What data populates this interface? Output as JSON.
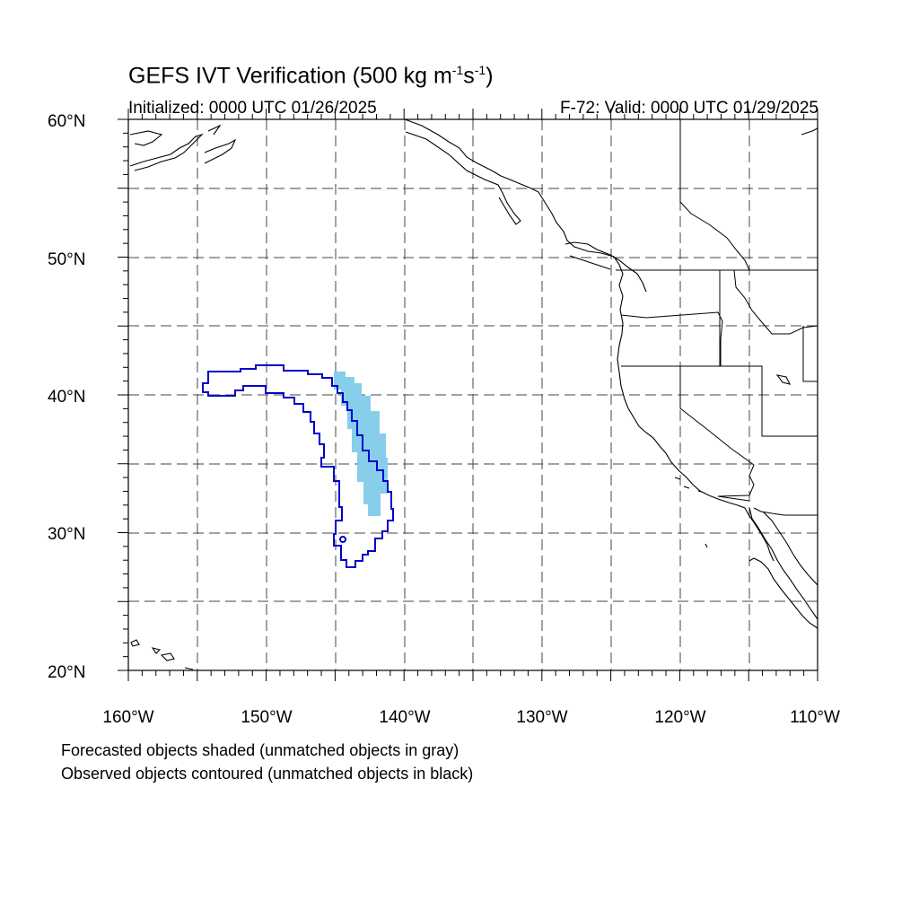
{
  "title": {
    "main": "GEFS IVT Verification (500 kg m",
    "sup1": "-1",
    "mid": "s",
    "sup2": "-1",
    "end": ")"
  },
  "initialized": "Initialized: 0000 UTC 01/26/2025",
  "valid": "F-72: Valid: 0000 UTC 01/29/2025",
  "lat_labels": [
    "60°N",
    "50°N",
    "40°N",
    "30°N",
    "20°N"
  ],
  "lon_labels": [
    "160°W",
    "150°W",
    "140°W",
    "130°W",
    "120°W",
    "110°W"
  ],
  "notes": {
    "forecast": "Forecasted objects shaded (unmatched objects in gray)",
    "observed": "Observed objects contoured (unmatched objects in black)"
  },
  "colors": {
    "forecast_fill": "#87ceeb",
    "observed_contour": "#0000cc",
    "grid": "#000000",
    "coast": "#000000"
  },
  "map_extent": {
    "lon_min": -160,
    "lon_max": -110,
    "lat_min": 20,
    "lat_max": 60
  }
}
